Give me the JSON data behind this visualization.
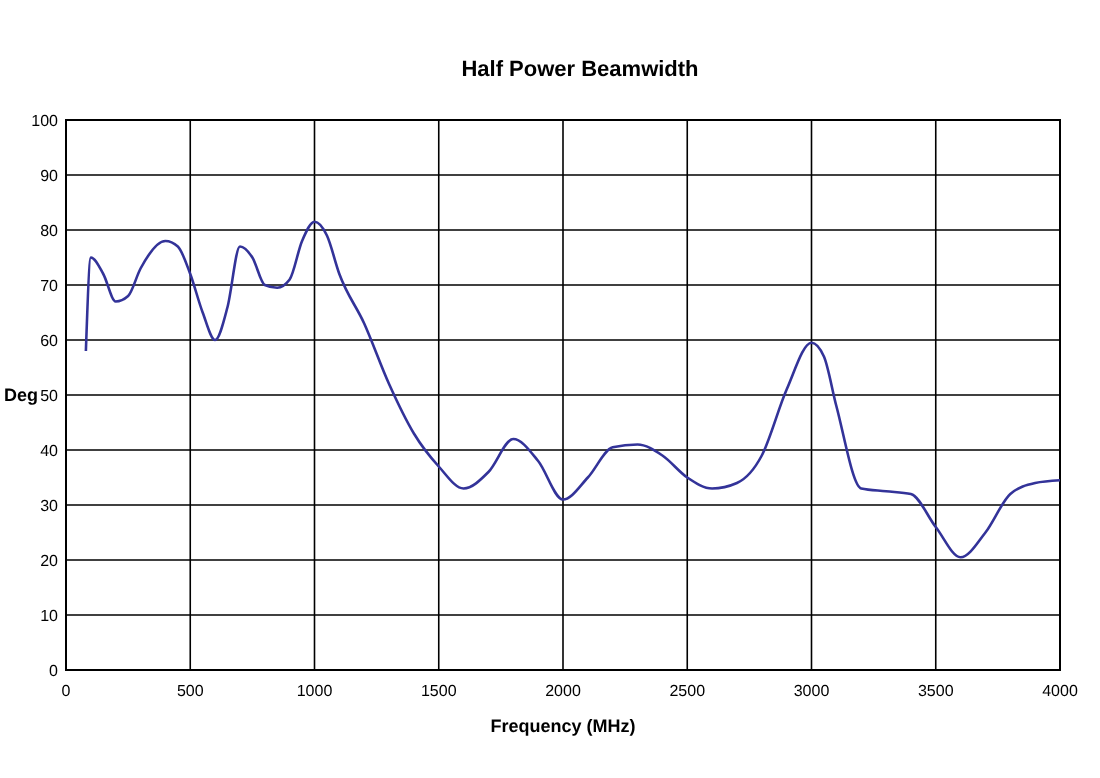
{
  "chart_data": {
    "type": "line",
    "title": "Half Power Beamwidth",
    "xlabel": "Frequency (MHz)",
    "ylabel": "Deg",
    "x": [
      80,
      100,
      150,
      200,
      250,
      300,
      400,
      450,
      500,
      550,
      600,
      650,
      700,
      750,
      800,
      850,
      900,
      950,
      1000,
      1050,
      1100,
      1200,
      1300,
      1400,
      1500,
      1600,
      1700,
      1800,
      1900,
      2000,
      2100,
      2200,
      2300,
      2400,
      2500,
      2600,
      2700,
      2800,
      2900,
      3000,
      3050,
      3100,
      3200,
      3300,
      3400,
      3500,
      3600,
      3700,
      3800,
      3900,
      4000
    ],
    "series": [
      {
        "color": "#333399",
        "values": [
          58,
          75,
          72,
          67,
          68,
          73,
          78,
          77,
          72,
          65,
          60,
          66,
          77,
          75,
          70,
          69.5,
          71,
          78,
          81.5,
          79,
          72,
          63,
          52,
          43,
          37,
          33,
          36,
          42,
          38,
          31,
          35,
          40.5,
          41,
          39,
          35,
          33,
          34,
          39,
          51,
          59.5,
          57,
          48,
          33,
          32.5,
          32,
          26,
          20.5,
          25,
          32,
          34,
          34.5
        ]
      }
    ],
    "xlim": [
      0,
      4000
    ],
    "xticks": [
      0,
      500,
      1000,
      1500,
      2000,
      2500,
      3000,
      3500,
      4000
    ],
    "ylim": [
      0,
      100
    ],
    "yticks": [
      0,
      10,
      20,
      30,
      40,
      50,
      60,
      70,
      80,
      90,
      100
    ],
    "grid": true,
    "marker": "none",
    "line_style": "solid"
  }
}
